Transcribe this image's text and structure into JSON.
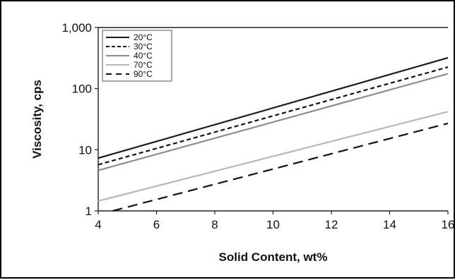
{
  "chart_data": {
    "type": "line",
    "title": "",
    "xlabel": "Solid Content, wt%",
    "ylabel": "Viscosity, cps",
    "xlim": [
      4,
      16
    ],
    "ylim": [
      1,
      1000
    ],
    "y_scale": "log",
    "x_ticks": [
      4,
      6,
      8,
      10,
      12,
      14,
      16
    ],
    "x_tick_labels": [
      "4",
      "6",
      "8",
      "10",
      "12",
      "14",
      "16"
    ],
    "y_ticks": [
      1,
      10,
      100,
      1000
    ],
    "y_tick_labels": [
      "1",
      "10",
      "100",
      "1,000"
    ],
    "grid": false,
    "legend_position": "top-left",
    "series": [
      {
        "name": "20°C",
        "color": "#1a1a1a",
        "dash": "solid",
        "x": [
          4,
          16
        ],
        "y": [
          7.3,
          320
        ]
      },
      {
        "name": "30°C",
        "color": "#111111",
        "dash": "dashed",
        "x": [
          4,
          16
        ],
        "y": [
          5.7,
          225
        ]
      },
      {
        "name": "40°C",
        "color": "#8c8c8c",
        "dash": "solid",
        "x": [
          4,
          16
        ],
        "y": [
          4.6,
          175
        ]
      },
      {
        "name": "70°C",
        "color": "#b8b8b8",
        "dash": "solid",
        "x": [
          4,
          16
        ],
        "y": [
          1.45,
          42
        ]
      },
      {
        "name": "90°C",
        "color": "#111111",
        "dash": "long-dash",
        "x": [
          4.5,
          16
        ],
        "y": [
          1.0,
          27
        ]
      }
    ]
  }
}
